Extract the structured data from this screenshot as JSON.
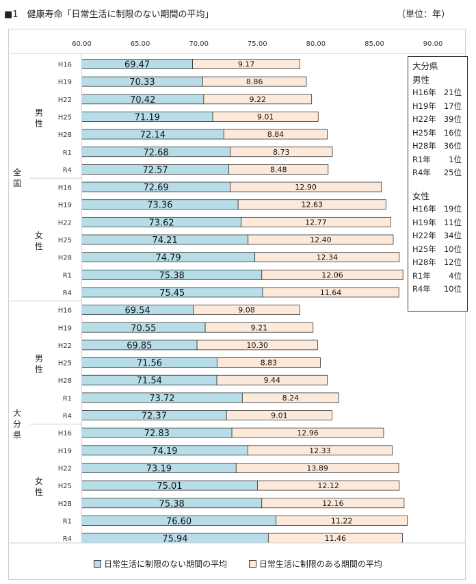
{
  "title": "■1　健康寿命「日常生活に制限のない期間の平均」",
  "unit": "（単位：年）",
  "chart_data": {
    "type": "bar",
    "stacked": true,
    "orientation": "horizontal",
    "xlim": [
      60,
      90
    ],
    "xticks": [
      "60.00",
      "65.00",
      "70.00",
      "75.00",
      "80.00",
      "85.00",
      "90.00"
    ],
    "colors": {
      "series1": "#b7dde8",
      "series2": "#fde9d9",
      "edge": "#333333"
    },
    "series": [
      {
        "name": "日常生活に制限のない期間の平均"
      },
      {
        "name": "日常生活に制限のある期間の平均"
      }
    ],
    "regions": [
      {
        "name": "全国",
        "sexes": [
          {
            "name": "男性",
            "rows": [
              {
                "year": "H16",
                "v1": 69.47,
                "v1_label": "69.47",
                "v2": 9.17,
                "v2_label": "9.17"
              },
              {
                "year": "H19",
                "v1": 70.33,
                "v1_label": "70.33",
                "v2": 8.86,
                "v2_label": "8.86"
              },
              {
                "year": "H22",
                "v1": 70.42,
                "v1_label": "70.42",
                "v2": 9.22,
                "v2_label": "9.22"
              },
              {
                "year": "H25",
                "v1": 71.19,
                "v1_label": "71.19",
                "v2": 9.01,
                "v2_label": "9.01"
              },
              {
                "year": "H28",
                "v1": 72.14,
                "v1_label": "72.14",
                "v2": 8.84,
                "v2_label": "8.84"
              },
              {
                "year": "R1",
                "v1": 72.68,
                "v1_label": "72.68",
                "v2": 8.73,
                "v2_label": "8.73"
              },
              {
                "year": "R4",
                "v1": 72.57,
                "v1_label": "72.57",
                "v2": 8.48,
                "v2_label": "8.48"
              }
            ]
          },
          {
            "name": "女性",
            "rows": [
              {
                "year": "H16",
                "v1": 72.69,
                "v1_label": "72.69",
                "v2": 12.9,
                "v2_label": "12.90"
              },
              {
                "year": "H19",
                "v1": 73.36,
                "v1_label": "73.36",
                "v2": 12.63,
                "v2_label": "12.63"
              },
              {
                "year": "H22",
                "v1": 73.62,
                "v1_label": "73.62",
                "v2": 12.77,
                "v2_label": "12.77"
              },
              {
                "year": "H25",
                "v1": 74.21,
                "v1_label": "74.21",
                "v2": 12.4,
                "v2_label": "12.40"
              },
              {
                "year": "H28",
                "v1": 74.79,
                "v1_label": "74.79",
                "v2": 12.34,
                "v2_label": "12.34"
              },
              {
                "year": "R1",
                "v1": 75.38,
                "v1_label": "75.38",
                "v2": 12.06,
                "v2_label": "12.06"
              },
              {
                "year": "R4",
                "v1": 75.45,
                "v1_label": "75.45",
                "v2": 11.64,
                "v2_label": "11.64"
              }
            ]
          }
        ]
      },
      {
        "name": "大分県",
        "sexes": [
          {
            "name": "男性",
            "rows": [
              {
                "year": "H16",
                "v1": 69.54,
                "v1_label": "69.54",
                "v2": 9.08,
                "v2_label": "9.08"
              },
              {
                "year": "H19",
                "v1": 70.55,
                "v1_label": "70.55",
                "v2": 9.21,
                "v2_label": "9.21"
              },
              {
                "year": "H22",
                "v1": 69.85,
                "v1_label": "69.85",
                "v2": 10.3,
                "v2_label": "10.30"
              },
              {
                "year": "H25",
                "v1": 71.56,
                "v1_label": "71.56",
                "v2": 8.83,
                "v2_label": "8.83"
              },
              {
                "year": "H28",
                "v1": 71.54,
                "v1_label": "71.54",
                "v2": 9.44,
                "v2_label": "9.44"
              },
              {
                "year": "R1",
                "v1": 73.72,
                "v1_label": "73.72",
                "v2": 8.24,
                "v2_label": "8.24"
              },
              {
                "year": "R4",
                "v1": 72.37,
                "v1_label": "72.37",
                "v2": 9.01,
                "v2_label": "9.01"
              }
            ]
          },
          {
            "name": "女性",
            "rows": [
              {
                "year": "H16",
                "v1": 72.83,
                "v1_label": "72.83",
                "v2": 12.96,
                "v2_label": "12.96"
              },
              {
                "year": "H19",
                "v1": 74.19,
                "v1_label": "74.19",
                "v2": 12.33,
                "v2_label": "12.33"
              },
              {
                "year": "H22",
                "v1": 73.19,
                "v1_label": "73.19",
                "v2": 13.89,
                "v2_label": "13.89"
              },
              {
                "year": "H25",
                "v1": 75.01,
                "v1_label": "75.01",
                "v2": 12.12,
                "v2_label": "12.12"
              },
              {
                "year": "H28",
                "v1": 75.38,
                "v1_label": "75.38",
                "v2": 12.16,
                "v2_label": "12.16"
              },
              {
                "year": "R1",
                "v1": 76.6,
                "v1_label": "76.60",
                "v2": 11.22,
                "v2_label": "11.22"
              },
              {
                "year": "R4",
                "v1": 75.94,
                "v1_label": "75.94",
                "v2": 11.46,
                "v2_label": "11.46"
              }
            ]
          }
        ]
      }
    ]
  },
  "ranking": {
    "title": "大分県",
    "groups": [
      {
        "name": "男性",
        "items": [
          {
            "year": "H16年",
            "rank": "21位"
          },
          {
            "year": "H19年",
            "rank": "17位"
          },
          {
            "year": "H22年",
            "rank": "39位"
          },
          {
            "year": "H25年",
            "rank": "16位"
          },
          {
            "year": "H28年",
            "rank": "36位"
          },
          {
            "year": "R1年",
            "rank": "1位"
          },
          {
            "year": "R4年",
            "rank": "25位"
          }
        ]
      },
      {
        "name": "女性",
        "items": [
          {
            "year": "H16年",
            "rank": "19位"
          },
          {
            "year": "H19年",
            "rank": "11位"
          },
          {
            "year": "H22年",
            "rank": "34位"
          },
          {
            "year": "H25年",
            "rank": "10位"
          },
          {
            "year": "H28年",
            "rank": "12位"
          },
          {
            "year": "R1年",
            "rank": "4位"
          },
          {
            "year": "R4年",
            "rank": "10位"
          }
        ]
      }
    ]
  },
  "legend": {
    "item1": "日常生活に制限のない期間の平均",
    "item2": "日常生活に制限のある期間の平均"
  }
}
